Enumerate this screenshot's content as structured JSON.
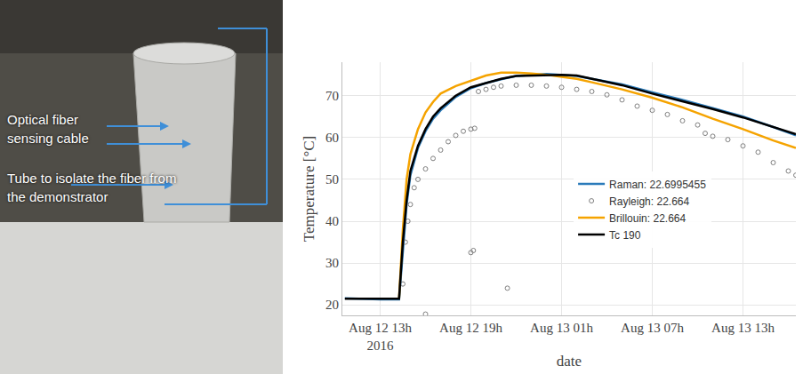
{
  "photo_labels": [
    "Optical fiber sensing cable",
    "Tube to isolate the fiber from the demonstrator"
  ],
  "chart_data": {
    "type": "line",
    "x_label": "date",
    "y_label": "Temperature [°C]",
    "xlim": [
      "2016-08-12 10:30",
      "2016-08-13 16:30"
    ],
    "xticks": [
      {
        "value": "2016-08-12 13:00",
        "label": "Aug 12 13h\n2016"
      },
      {
        "value": "2016-08-12 19:00",
        "label": "Aug 12 19h"
      },
      {
        "value": "2016-08-13 01:00",
        "label": "Aug 13 01h"
      },
      {
        "value": "2016-08-13 07:00",
        "label": "Aug 13 07h"
      },
      {
        "value": "2016-08-13 13:00",
        "label": "Aug 13 13h"
      }
    ],
    "ylim": [
      17.5,
      78
    ],
    "yticks": [
      20,
      30,
      40,
      50,
      60,
      70
    ],
    "grid": true,
    "legend": "center",
    "series": [
      {
        "name": "Raman: 22.6995455",
        "color": "#2b7bba",
        "line_style": "solid",
        "x": [
          "2016-08-12 10:40",
          "2016-08-12 13:00",
          "2016-08-12 14:15",
          "2016-08-12 14:30",
          "2016-08-12 14:45",
          "2016-08-12 15:00",
          "2016-08-12 15:30",
          "2016-08-12 16:00",
          "2016-08-12 16:30",
          "2016-08-12 17:00",
          "2016-08-12 17:30",
          "2016-08-12 18:00",
          "2016-08-12 19:00",
          "2016-08-12 20:00",
          "2016-08-12 21:00",
          "2016-08-12 22:00",
          "2016-08-13 00:00",
          "2016-08-13 01:00",
          "2016-08-13 02:00",
          "2016-08-13 03:00",
          "2016-08-13 05:00",
          "2016-08-13 07:00",
          "2016-08-13 09:00",
          "2016-08-13 11:00",
          "2016-08-13 13:00",
          "2016-08-13 15:00",
          "2016-08-13 16:30"
        ],
        "values": [
          21.6,
          21.3,
          21.3,
          33,
          44,
          51,
          57.5,
          61.5,
          64.5,
          66.5,
          68.2,
          69.7,
          71.8,
          73,
          73.9,
          74.7,
          75.2,
          75,
          74.7,
          74,
          72.7,
          70.8,
          69,
          67,
          65,
          62.5,
          60.5
        ]
      },
      {
        "name": "Rayleigh: 22.664",
        "color": "#7f7f7f",
        "marker": "circle",
        "x": [
          "2016-08-12 14:30",
          "2016-08-12 14:40",
          "2016-08-12 14:50",
          "2016-08-12 15:00",
          "2016-08-12 15:15",
          "2016-08-12 15:30",
          "2016-08-12 16:00",
          "2016-08-12 16:00",
          "2016-08-12 16:30",
          "2016-08-12 17:00",
          "2016-08-12 17:30",
          "2016-08-12 18:00",
          "2016-08-12 18:30",
          "2016-08-12 19:00",
          "2016-08-12 19:00",
          "2016-08-12 19:10",
          "2016-08-12 19:15",
          "2016-08-12 19:30",
          "2016-08-12 20:00",
          "2016-08-12 20:30",
          "2016-08-12 21:00",
          "2016-08-12 21:25",
          "2016-08-12 22:00",
          "2016-08-12 23:00",
          "2016-08-13 00:00",
          "2016-08-13 01:00",
          "2016-08-13 02:00",
          "2016-08-13 03:00",
          "2016-08-13 04:00",
          "2016-08-13 05:00",
          "2016-08-13 06:00",
          "2016-08-13 07:00",
          "2016-08-13 08:00",
          "2016-08-13 09:00",
          "2016-08-13 10:00",
          "2016-08-13 10:30",
          "2016-08-13 11:00",
          "2016-08-13 12:00",
          "2016-08-13 13:00",
          "2016-08-13 14:00",
          "2016-08-13 15:00",
          "2016-08-13 16:00",
          "2016-08-13 16:30"
        ],
        "values": [
          25,
          35,
          40,
          44,
          48,
          50,
          52.5,
          17.8,
          55,
          57,
          59,
          60.5,
          61.5,
          62,
          32.5,
          33,
          62.2,
          71,
          71.5,
          72,
          72.3,
          24,
          72.5,
          72.5,
          72.3,
          72,
          71.5,
          71,
          70.2,
          69,
          67.5,
          66.5,
          65.5,
          64,
          63,
          61,
          60.3,
          59.5,
          58,
          56.5,
          54,
          52,
          51
        ]
      },
      {
        "name": "Brillouin: 22.664",
        "color": "#f5a300",
        "line_style": "solid",
        "x": [
          "2016-08-12 14:15",
          "2016-08-12 14:30",
          "2016-08-12 14:45",
          "2016-08-12 15:00",
          "2016-08-12 15:30",
          "2016-08-12 16:00",
          "2016-08-12 16:30",
          "2016-08-12 17:00",
          "2016-08-12 18:00",
          "2016-08-12 19:00",
          "2016-08-12 20:00",
          "2016-08-12 21:00",
          "2016-08-12 22:00",
          "2016-08-12 23:00",
          "2016-08-13 00:00",
          "2016-08-13 01:00",
          "2016-08-13 02:00",
          "2016-08-13 03:00",
          "2016-08-13 05:00",
          "2016-08-13 07:00",
          "2016-08-13 09:00",
          "2016-08-13 11:00",
          "2016-08-13 13:00",
          "2016-08-13 15:00",
          "2016-08-13 16:30"
        ],
        "values": [
          21.5,
          38,
          50,
          56,
          62,
          66,
          68.5,
          70.5,
          72.3,
          73.5,
          74.8,
          75.5,
          75.5,
          75.3,
          75,
          74.5,
          74,
          73.2,
          71.5,
          69.5,
          67.2,
          64.5,
          62,
          59.3,
          57.5
        ]
      },
      {
        "name": "Tc 190",
        "color": "#000000",
        "line_style": "solid",
        "x": [
          "2016-08-12 10:40",
          "2016-08-12 13:00",
          "2016-08-12 14:15",
          "2016-08-12 14:30",
          "2016-08-12 14:45",
          "2016-08-12 15:00",
          "2016-08-12 15:30",
          "2016-08-12 16:00",
          "2016-08-12 16:30",
          "2016-08-12 17:00",
          "2016-08-12 17:30",
          "2016-08-12 18:00",
          "2016-08-12 19:00",
          "2016-08-12 20:00",
          "2016-08-12 21:00",
          "2016-08-12 22:00",
          "2016-08-13 00:00",
          "2016-08-13 01:00",
          "2016-08-13 02:00",
          "2016-08-13 03:00",
          "2016-08-13 05:00",
          "2016-08-13 07:00",
          "2016-08-13 09:00",
          "2016-08-13 11:00",
          "2016-08-13 13:00",
          "2016-08-13 15:00",
          "2016-08-13 16:30"
        ],
        "values": [
          21.5,
          21.5,
          21.5,
          35,
          45,
          52,
          58,
          62,
          65,
          67,
          68.5,
          70,
          72,
          73,
          74,
          74.7,
          75,
          75,
          74.8,
          74,
          72.5,
          70.5,
          68.7,
          66.8,
          64.8,
          62.5,
          60.8
        ]
      }
    ]
  }
}
